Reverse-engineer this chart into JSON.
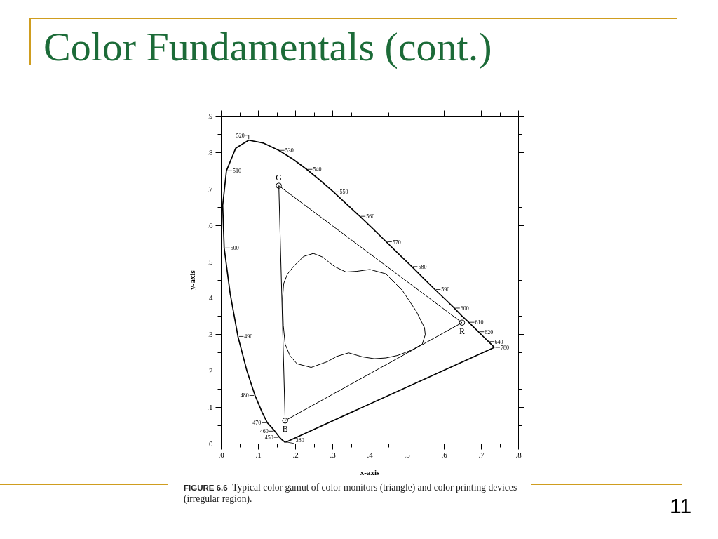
{
  "chart_data": {
    "type": "line",
    "title": "Color Fundamentals (cont.)",
    "xlabel": "x-axis",
    "ylabel": "y-axis",
    "xlim": [
      0,
      0.8
    ],
    "ylim": [
      0,
      0.9
    ],
    "xticks": [
      {
        "value": 0,
        "label": ".0"
      },
      {
        "value": 0.05,
        "label": null
      },
      {
        "value": 0.1,
        "label": ".1"
      },
      {
        "value": 0.15,
        "label": null
      },
      {
        "value": 0.2,
        "label": ".2"
      },
      {
        "value": 0.25,
        "label": null
      },
      {
        "value": 0.3,
        "label": ".3"
      },
      {
        "value": 0.35,
        "label": null
      },
      {
        "value": 0.4,
        "label": ".4"
      },
      {
        "value": 0.45,
        "label": null
      },
      {
        "value": 0.5,
        "label": ".5"
      },
      {
        "value": 0.55,
        "label": null
      },
      {
        "value": 0.6,
        "label": ".6"
      },
      {
        "value": 0.65,
        "label": null
      },
      {
        "value": 0.7,
        "label": ".7"
      },
      {
        "value": 0.75,
        "label": null
      },
      {
        "value": 0.8,
        "label": ".8"
      }
    ],
    "yticks": [
      {
        "value": 0,
        "label": ".0"
      },
      {
        "value": 0.05,
        "label": null
      },
      {
        "value": 0.1,
        "label": ".1"
      },
      {
        "value": 0.15,
        "label": null
      },
      {
        "value": 0.2,
        "label": ".2"
      },
      {
        "value": 0.25,
        "label": null
      },
      {
        "value": 0.3,
        "label": ".3"
      },
      {
        "value": 0.35,
        "label": null
      },
      {
        "value": 0.4,
        "label": ".4"
      },
      {
        "value": 0.45,
        "label": null
      },
      {
        "value": 0.5,
        "label": ".5"
      },
      {
        "value": 0.55,
        "label": null
      },
      {
        "value": 0.6,
        "label": ".6"
      },
      {
        "value": 0.65,
        "label": null
      },
      {
        "value": 0.7,
        "label": ".7"
      },
      {
        "value": 0.75,
        "label": null
      },
      {
        "value": 0.8,
        "label": ".8"
      },
      {
        "value": 0.85,
        "label": null
      },
      {
        "value": 0.9,
        "label": ".9"
      }
    ],
    "series": [
      {
        "color": "#000000",
        "x": [
          0.174,
          0.171,
          0.169,
          0.164,
          0.157,
          0.144,
          0.136,
          0.124,
          0.11,
          0.091,
          0.069,
          0.045,
          0.024,
          0.008,
          0.004,
          0.014,
          0.039,
          0.074,
          0.114,
          0.155,
          0.193,
          0.23,
          0.266,
          0.302,
          0.337,
          0.373,
          0.409,
          0.444,
          0.479,
          0.513,
          0.545,
          0.575,
          0.603,
          0.627,
          0.648,
          0.666,
          0.692,
          0.708,
          0.719,
          0.73,
          0.734,
          0.735
        ],
        "values": [
          0.005,
          0.005,
          0.007,
          0.011,
          0.018,
          0.035,
          0.045,
          0.058,
          0.087,
          0.133,
          0.201,
          0.295,
          0.413,
          0.538,
          0.655,
          0.75,
          0.812,
          0.834,
          0.826,
          0.806,
          0.782,
          0.754,
          0.724,
          0.692,
          0.659,
          0.625,
          0.59,
          0.555,
          0.52,
          0.487,
          0.454,
          0.424,
          0.397,
          0.373,
          0.351,
          0.334,
          0.308,
          0.292,
          0.281,
          0.27,
          0.266,
          0.265
        ]
      },
      {
        "color": "#000000",
        "x": [
          0.735,
          0.174
        ],
        "values": [
          0.265,
          0.005
        ]
      },
      {
        "color": "#000000",
        "x": [
          0.155,
          0.648,
          0.172
        ],
        "values": [
          0.709,
          0.333,
          0.064
        ]
      },
      {
        "color": "#000000",
        "x": [
          0.172,
          0.155
        ],
        "values": [
          0.064,
          0.709
        ]
      },
      {
        "color": "#000000",
        "x": [
          0.165,
          0.168,
          0.178,
          0.195,
          0.222,
          0.248,
          0.273,
          0.305,
          0.336,
          0.365,
          0.4,
          0.443,
          0.487,
          0.525,
          0.547,
          0.549
        ],
        "values": [
          0.4,
          0.44,
          0.466,
          0.488,
          0.515,
          0.523,
          0.513,
          0.487,
          0.472,
          0.474,
          0.479,
          0.467,
          0.422,
          0.364,
          0.319,
          0.3
        ]
      },
      {
        "color": "#000000",
        "x": [
          0.549,
          0.541,
          0.513,
          0.475,
          0.443,
          0.412,
          0.38,
          0.343,
          0.31,
          0.286,
          0.242,
          0.204,
          0.185,
          0.172,
          0.167,
          0.165
        ],
        "values": [
          0.3,
          0.274,
          0.258,
          0.243,
          0.236,
          0.234,
          0.239,
          0.25,
          0.24,
          0.226,
          0.21,
          0.22,
          0.242,
          0.274,
          0.326,
          0.4
        ]
      },
      {
        "type": "scatter",
        "color": "#000000",
        "marker": "circle",
        "x": [
          0.155,
          0.648,
          0.172
        ],
        "values": [
          0.709,
          0.333,
          0.064
        ]
      }
    ],
    "annotations": [
      "FIGURE 6.6 Typical color gamut of color monitors (triangle) and color printing devices (irregular region).",
      "11",
      {
        "text": "380",
        "x": 0.174,
        "y": 0.005
      },
      {
        "text": "450",
        "x": 0.157,
        "y": 0.018
      },
      {
        "text": "460",
        "x": 0.144,
        "y": 0.035
      },
      {
        "text": "470",
        "x": 0.124,
        "y": 0.058
      },
      {
        "text": "480",
        "x": 0.091,
        "y": 0.133
      },
      {
        "text": "490",
        "x": 0.045,
        "y": 0.295
      },
      {
        "text": "500",
        "x": 0.008,
        "y": 0.538
      },
      {
        "text": "510",
        "x": 0.014,
        "y": 0.75
      },
      {
        "text": "520",
        "x": 0.074,
        "y": 0.834
      },
      {
        "text": "530",
        "x": 0.155,
        "y": 0.806
      },
      {
        "text": "540",
        "x": 0.23,
        "y": 0.754
      },
      {
        "text": "550",
        "x": 0.302,
        "y": 0.692
      },
      {
        "text": "560",
        "x": 0.373,
        "y": 0.625
      },
      {
        "text": "570",
        "x": 0.444,
        "y": 0.555
      },
      {
        "text": "580",
        "x": 0.513,
        "y": 0.487
      },
      {
        "text": "590",
        "x": 0.575,
        "y": 0.424
      },
      {
        "text": "600",
        "x": 0.627,
        "y": 0.373
      },
      {
        "text": "610",
        "x": 0.666,
        "y": 0.334
      },
      {
        "text": "620",
        "x": 0.692,
        "y": 0.308
      },
      {
        "text": "640",
        "x": 0.719,
        "y": 0.281
      },
      {
        "text": "780",
        "x": 0.735,
        "y": 0.265
      },
      {
        "text": "G",
        "x": 0.155,
        "y": 0.709
      },
      {
        "text": "R",
        "x": 0.648,
        "y": 0.333
      },
      {
        "text": "B",
        "x": 0.172,
        "y": 0.064
      }
    ]
  }
}
